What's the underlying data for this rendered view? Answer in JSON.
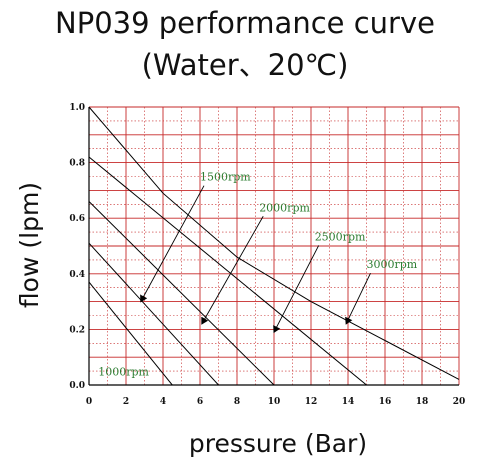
{
  "chart_data": {
    "type": "line",
    "title": "NP039 performance curve",
    "subtitle": "(Water、20℃)",
    "xlabel": "pressure (Bar)",
    "ylabel": "flow (lpm)",
    "xlim": [
      0,
      20
    ],
    "ylim": [
      0,
      1.0
    ],
    "x_ticks": [
      "0",
      "2",
      "4",
      "6",
      "8",
      "10",
      "12",
      "14",
      "16",
      "18",
      "20"
    ],
    "y_ticks": [
      "0.0",
      "0.2",
      "0.4",
      "0.6",
      "0.8",
      "1.0"
    ],
    "grid": true,
    "grid_colors": {
      "major": "#c62828",
      "minor": "#c62828"
    },
    "line_color": "#000000",
    "label_color": "#2e7d32",
    "series": [
      {
        "name": "1000rpm",
        "x": [
          0,
          4.5
        ],
        "y": [
          0.37,
          0
        ]
      },
      {
        "name": "1500rpm",
        "x": [
          0,
          7
        ],
        "y": [
          0.51,
          0
        ]
      },
      {
        "name": "2000rpm",
        "x": [
          0,
          10
        ],
        "y": [
          0.66,
          0
        ]
      },
      {
        "name": "2500rpm",
        "x": [
          0,
          15
        ],
        "y": [
          0.82,
          0
        ]
      },
      {
        "name": "3000rpm",
        "x": [
          0,
          4,
          8,
          12,
          16,
          20
        ],
        "y": [
          1.0,
          0.69,
          0.46,
          0.3,
          0.16,
          0.02
        ]
      }
    ],
    "annotations": [
      {
        "text": "1000rpm",
        "x": 0.5,
        "y": 0.035
      },
      {
        "text": "1500rpm",
        "x": 6,
        "y": 0.735,
        "arrow_to": [
          2.8,
          0.3
        ]
      },
      {
        "text": "2000rpm",
        "x": 9.2,
        "y": 0.625,
        "arrow_to": [
          6.1,
          0.22
        ]
      },
      {
        "text": "2500rpm",
        "x": 12.2,
        "y": 0.52,
        "arrow_to": [
          10,
          0.19
        ]
      },
      {
        "text": "3000rpm",
        "x": 15,
        "y": 0.42,
        "arrow_to": [
          13.9,
          0.22
        ]
      }
    ]
  }
}
